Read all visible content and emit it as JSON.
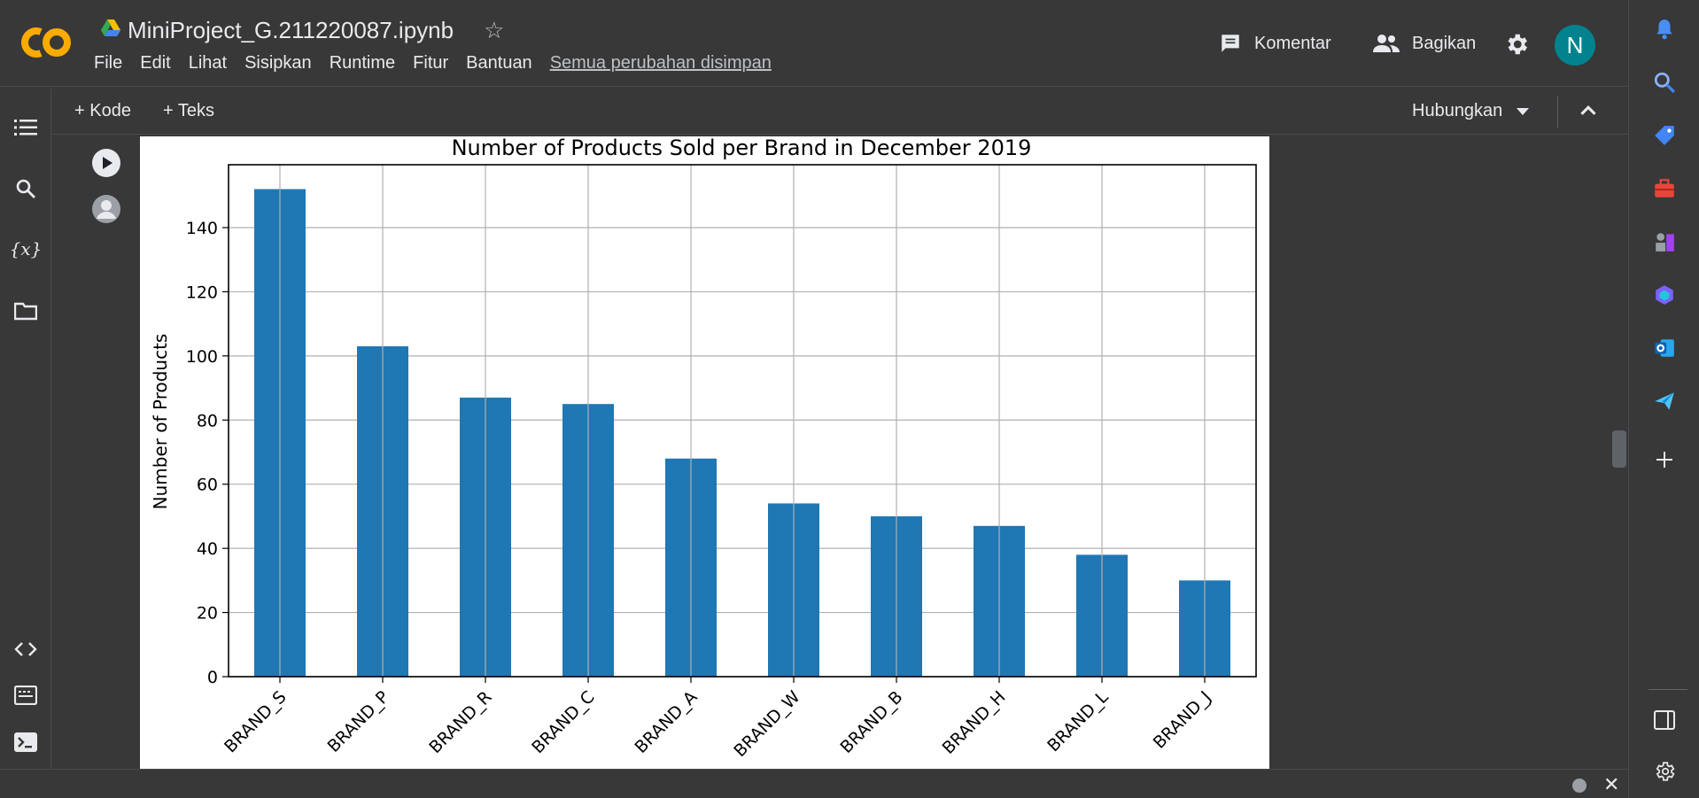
{
  "header": {
    "notebook_title": "MiniProject_G.211220087.ipynb",
    "menu": [
      "File",
      "Edit",
      "Lihat",
      "Sisipkan",
      "Runtime",
      "Fitur",
      "Bantuan"
    ],
    "save_status": "Semua perubahan disimpan",
    "comment_label": "Komentar",
    "share_label": "Bagikan",
    "avatar_initial": "N"
  },
  "toolbar": {
    "add_code": "+ Kode",
    "add_text": "+ Teks",
    "connect": "Hubungkan"
  },
  "left_nav": {
    "variables_icon_text": "{x}"
  },
  "colors": {
    "bar": "#1f77b4",
    "background": "#383838",
    "avatar": "#00838f",
    "logo": "#f9ab00"
  },
  "chart_data": {
    "type": "bar",
    "title": "Number of Products Sold per Brand in December 2019",
    "xlabel": "",
    "ylabel": "Number of Products",
    "categories": [
      "BRAND_S",
      "BRAND_P",
      "BRAND_R",
      "BRAND_C",
      "BRAND_A",
      "BRAND_W",
      "BRAND_B",
      "BRAND_H",
      "BRAND_L",
      "BRAND_J"
    ],
    "values": [
      152,
      103,
      87,
      85,
      68,
      54,
      50,
      47,
      38,
      30
    ],
    "ylim": [
      0,
      159.6
    ],
    "yticks": [
      0,
      20,
      40,
      60,
      80,
      100,
      120,
      140
    ],
    "grid": true,
    "legend": false
  }
}
